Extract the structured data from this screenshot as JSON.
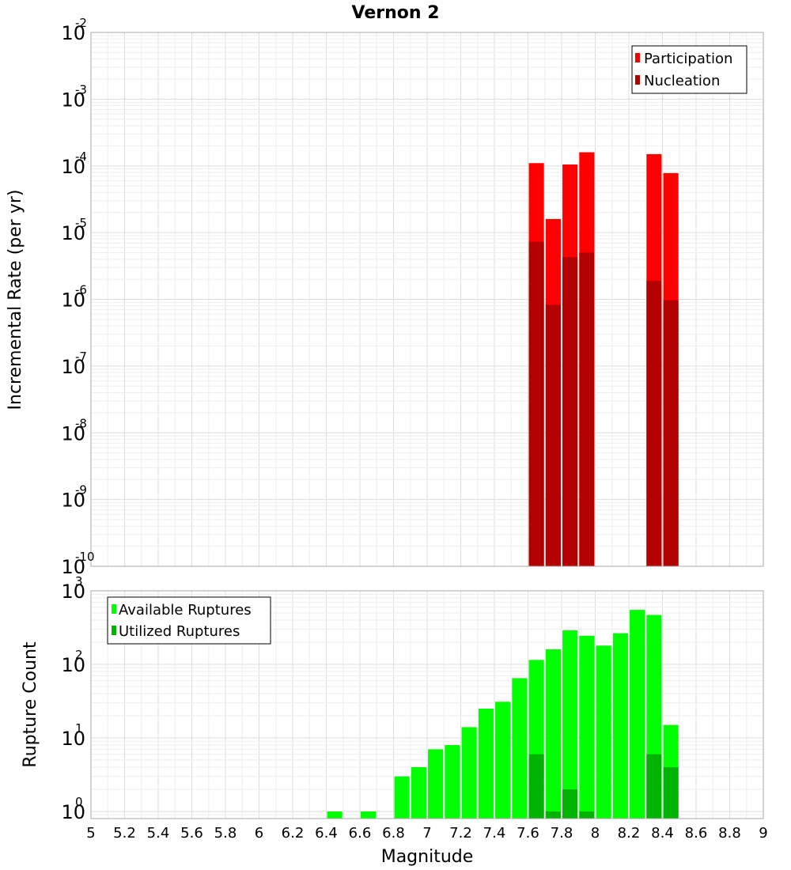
{
  "figure": {
    "title": "Vernon 2"
  },
  "chart_data": [
    {
      "type": "bar",
      "ylabel": "Incremental Rate (per yr)",
      "xlim": [
        5,
        9
      ],
      "ylim": [
        1e-10,
        0.01
      ],
      "yscale": "log",
      "y_ticks": [
        {
          "base": "10",
          "exp": "-10",
          "value": 1e-10
        },
        {
          "base": "10",
          "exp": "-9",
          "value": 1e-09
        },
        {
          "base": "10",
          "exp": "-8",
          "value": 1e-08
        },
        {
          "base": "10",
          "exp": "-7",
          "value": 1e-07
        },
        {
          "base": "10",
          "exp": "-6",
          "value": 1e-06
        },
        {
          "base": "10",
          "exp": "-5",
          "value": 1e-05
        },
        {
          "base": "10",
          "exp": "-4",
          "value": 0.0001
        },
        {
          "base": "10",
          "exp": "-3",
          "value": 0.001
        },
        {
          "base": "10",
          "exp": "-2",
          "value": 0.01
        }
      ],
      "grid": true,
      "legend": "top-right",
      "bar_width": 0.09,
      "series": [
        {
          "name": "Participation",
          "color": "#ff0000",
          "points": [
            {
              "x": 7.65,
              "y": 0.00011
            },
            {
              "x": 7.75,
              "y": 1.6e-05
            },
            {
              "x": 7.85,
              "y": 0.000105
            },
            {
              "x": 7.95,
              "y": 0.00016
            },
            {
              "x": 8.35,
              "y": 0.00015
            },
            {
              "x": 8.45,
              "y": 7.8e-05
            }
          ]
        },
        {
          "name": "Nucleation",
          "color": "#b30000",
          "points": [
            {
              "x": 7.65,
              "y": 7.3e-06
            },
            {
              "x": 7.75,
              "y": 8.3e-07
            },
            {
              "x": 7.85,
              "y": 4.3e-06
            },
            {
              "x": 7.95,
              "y": 5e-06
            },
            {
              "x": 8.35,
              "y": 1.9e-06
            },
            {
              "x": 8.45,
              "y": 9.7e-07
            }
          ]
        }
      ]
    },
    {
      "type": "bar",
      "xlabel": "Magnitude",
      "ylabel": "Rupture Count",
      "xlim": [
        5,
        9
      ],
      "ylim": [
        0.8,
        1000
      ],
      "yscale": "log",
      "x_ticks": [
        "5",
        "5.2",
        "5.4",
        "5.6",
        "5.8",
        "6",
        "6.2",
        "6.4",
        "6.6",
        "6.8",
        "7",
        "7.2",
        "7.4",
        "7.6",
        "7.8",
        "8",
        "8.2",
        "8.4",
        "8.6",
        "8.8",
        "9"
      ],
      "y_ticks": [
        {
          "base": "10",
          "exp": "0",
          "value": 1
        },
        {
          "base": "10",
          "exp": "1",
          "value": 10
        },
        {
          "base": "10",
          "exp": "2",
          "value": 100
        },
        {
          "base": "10",
          "exp": "3",
          "value": 1000
        }
      ],
      "grid": true,
      "legend": "top-left",
      "bar_width": 0.09,
      "series": [
        {
          "name": "Available Ruptures",
          "color": "#00ff00",
          "points": [
            {
              "x": 6.45,
              "y": 1
            },
            {
              "x": 6.65,
              "y": 1
            },
            {
              "x": 6.85,
              "y": 3
            },
            {
              "x": 6.95,
              "y": 4
            },
            {
              "x": 7.05,
              "y": 7
            },
            {
              "x": 7.15,
              "y": 8
            },
            {
              "x": 7.25,
              "y": 14
            },
            {
              "x": 7.35,
              "y": 25
            },
            {
              "x": 7.45,
              "y": 31
            },
            {
              "x": 7.55,
              "y": 65
            },
            {
              "x": 7.65,
              "y": 115
            },
            {
              "x": 7.75,
              "y": 160
            },
            {
              "x": 7.85,
              "y": 290
            },
            {
              "x": 7.95,
              "y": 245
            },
            {
              "x": 8.05,
              "y": 180
            },
            {
              "x": 8.15,
              "y": 265
            },
            {
              "x": 8.25,
              "y": 550
            },
            {
              "x": 8.35,
              "y": 470
            },
            {
              "x": 8.45,
              "y": 15
            }
          ]
        },
        {
          "name": "Utilized Ruptures",
          "color": "#00b300",
          "points": [
            {
              "x": 7.65,
              "y": 6
            },
            {
              "x": 7.75,
              "y": 1
            },
            {
              "x": 7.85,
              "y": 2
            },
            {
              "x": 7.95,
              "y": 1
            },
            {
              "x": 8.35,
              "y": 6
            },
            {
              "x": 8.45,
              "y": 4
            }
          ]
        }
      ]
    }
  ]
}
